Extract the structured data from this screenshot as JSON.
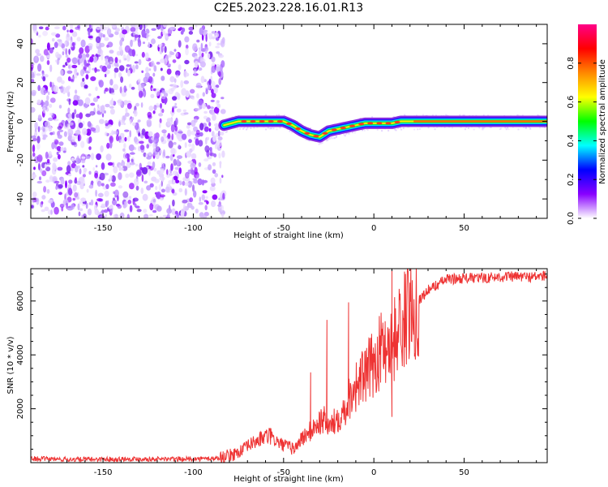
{
  "title": "C2E5.2023.228.16.01.R13",
  "chart_data": [
    {
      "type": "heatmap",
      "xlabel": "Height of straight line (km)",
      "ylabel": "Frequency (Hz)",
      "xlim": [
        -190,
        96
      ],
      "ylim": [
        -50,
        50
      ],
      "x_ticks": [
        -150,
        -100,
        -50,
        0,
        50
      ],
      "y_ticks": [
        -40,
        -20,
        0,
        20,
        40
      ],
      "x_tick_labels": [
        "-150",
        "-100",
        "-50",
        "0",
        "50"
      ],
      "y_tick_labels": [
        "-40",
        "-20",
        "0",
        "20",
        "40"
      ],
      "noise_region_x": [
        -190,
        -83
      ],
      "ridge": {
        "x": [
          -83,
          -75,
          -65,
          -55,
          -50,
          -45,
          -40,
          -35,
          -30,
          -25,
          -20,
          -15,
          -10,
          -5,
          0,
          5,
          10,
          15,
          20,
          30,
          40,
          50,
          60,
          70,
          80,
          96
        ],
        "frequency": [
          -2,
          0,
          0,
          0,
          0,
          -2,
          -5,
          -7,
          -8,
          -5,
          -4,
          -3,
          -2,
          -1,
          -1,
          -1,
          -1,
          0,
          0,
          0,
          0,
          0,
          0,
          0,
          0,
          0
        ]
      },
      "colorbar": {
        "label": "Normalized spectral amplitude",
        "range": [
          0.0,
          1.0
        ],
        "ticks": [
          0.0,
          0.2,
          0.4,
          0.6,
          0.8
        ],
        "tick_labels": [
          "0.0",
          "0.2",
          "0.4",
          "0.6",
          "0.8"
        ],
        "colors": [
          "#ffffff",
          "#8800ff",
          "#0000ff",
          "#00ffff",
          "#00ff00",
          "#ffff00",
          "#ff8800",
          "#ff0000",
          "#ff0088"
        ]
      }
    },
    {
      "type": "line",
      "xlabel": "Height of straight line (km)",
      "ylabel": "SNR (10 * v/v)",
      "xlim": [
        -190,
        96
      ],
      "ylim": [
        0,
        7200
      ],
      "x_ticks": [
        -150,
        -100,
        -50,
        0,
        50
      ],
      "y_ticks": [
        2000,
        4000,
        6000
      ],
      "x_tick_labels": [
        "-150",
        "-100",
        "-50",
        "0",
        "50"
      ],
      "y_tick_labels": [
        "2000",
        "4000",
        "6000"
      ],
      "color": "#ee3333",
      "series": [
        {
          "name": "SNR",
          "x": [
            -190,
            -170,
            -150,
            -130,
            -110,
            -95,
            -85,
            -78,
            -72,
            -68,
            -62,
            -58,
            -52,
            -48,
            -44,
            -40,
            -36,
            -32,
            -28,
            -24,
            -20,
            -16,
            -12,
            -8,
            -4,
            0,
            4,
            8,
            10,
            14,
            18,
            22,
            26,
            30,
            35,
            40,
            50,
            60,
            70,
            80,
            90,
            96
          ],
          "y": [
            150,
            120,
            130,
            140,
            130,
            140,
            170,
            300,
            500,
            700,
            900,
            1000,
            700,
            600,
            500,
            900,
            1100,
            1400,
            1600,
            1300,
            1700,
            2000,
            2700,
            3000,
            3300,
            3700,
            4200,
            4500,
            4400,
            5000,
            5400,
            5800,
            6100,
            6400,
            6600,
            6800,
            6850,
            6850,
            6900,
            6900,
            6900,
            6950
          ]
        }
      ],
      "spikes": [
        {
          "x": -35,
          "y": 3350
        },
        {
          "x": -26,
          "y": 5300
        },
        {
          "x": -14,
          "y": 5950
        },
        {
          "x": 10,
          "y": 7150
        },
        {
          "x": 10,
          "y": 1700
        }
      ]
    }
  ]
}
